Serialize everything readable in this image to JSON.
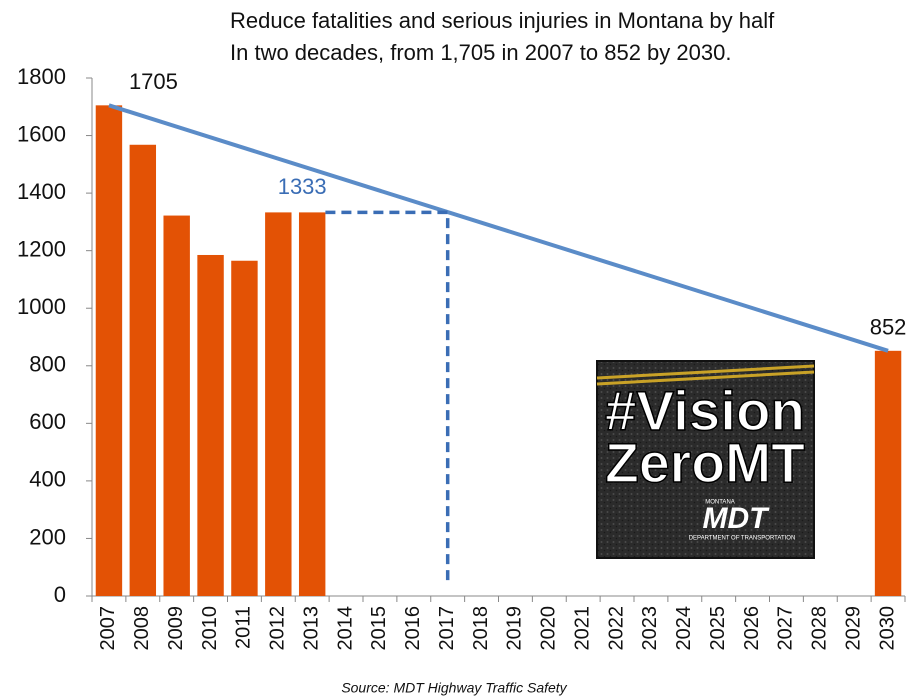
{
  "chart_data": {
    "type": "bar",
    "title": "Reduce fatalities and serious injuries in Montana by half",
    "subtitle": "In two decades, from 1,705 in 2007 to 852 by 2030.",
    "source": "Source: MDT Highway Traffic Safety",
    "categories": [
      "2007",
      "2008",
      "2009",
      "2010",
      "2011",
      "2012",
      "2013",
      "2014",
      "2015",
      "2016",
      "2017",
      "2018",
      "2019",
      "2020",
      "2021",
      "2022",
      "2023",
      "2024",
      "2025",
      "2026",
      "2027",
      "2028",
      "2029",
      "2030"
    ],
    "values": [
      1705,
      1568,
      1322,
      1185,
      1165,
      1333,
      1333,
      null,
      null,
      null,
      null,
      null,
      null,
      null,
      null,
      null,
      null,
      null,
      null,
      null,
      null,
      null,
      null,
      852
    ],
    "color": "#e35205",
    "target_line": {
      "x": [
        "2007",
        "2030"
      ],
      "values": [
        1705,
        852
      ],
      "color": "#5b8cc8"
    },
    "projection": {
      "x": [
        "2013",
        "2017",
        "2017"
      ],
      "values": [
        1333,
        1333,
        0
      ],
      "color": "#3a6db5"
    },
    "ylim": [
      0,
      1800
    ],
    "yticks": [
      0,
      200,
      400,
      600,
      800,
      1000,
      1200,
      1400,
      1600,
      1800
    ],
    "grid": false
  },
  "logo": {
    "line1": "#Vision",
    "line2": "ZeroMT",
    "org": "MDT",
    "org_top": "MONTANA",
    "org_bottom": "DEPARTMENT OF TRANSPORTATION"
  }
}
